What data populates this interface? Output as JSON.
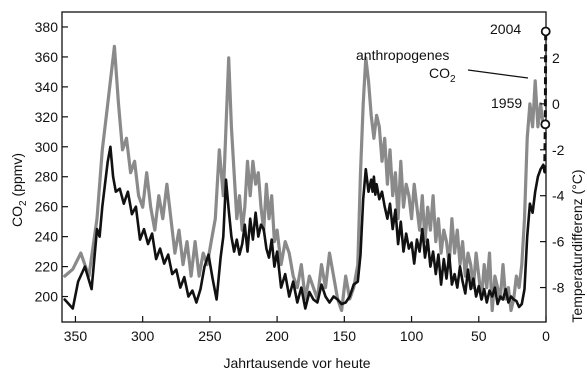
{
  "chart_data": {
    "type": "line",
    "xlabel": "Jahrtausende vor heute",
    "ylabel_left_main": "CO",
    "ylabel_left_sub": "2",
    "ylabel_left_unit": "(ppmv)",
    "ylabel_right": "Temperaturdifferenz (°C)",
    "x_axis_reversed": true,
    "xlim": [
      360,
      0
    ],
    "x_ticks": [
      350,
      300,
      250,
      200,
      150,
      100,
      50,
      0
    ],
    "y_left_lim": [
      183,
      390
    ],
    "y_left_ticks": [
      200,
      220,
      240,
      260,
      280,
      300,
      320,
      340,
      360,
      380
    ],
    "y_right_lim": [
      -9.5,
      4
    ],
    "y_right_ticks": [
      2,
      0,
      -2,
      -4,
      -6,
      -8
    ],
    "grid": false,
    "legend": "none",
    "series": [
      {
        "axis": "left",
        "color": "#111111",
        "x": [
          358,
          352,
          348,
          343,
          338,
          334,
          332,
          330,
          328,
          326,
          324,
          322,
          320,
          317,
          314,
          311,
          308,
          305,
          302,
          299,
          296,
          293,
          290,
          287,
          284,
          281,
          278,
          275,
          272,
          269,
          266,
          263,
          260,
          257,
          254,
          251,
          248,
          245,
          242,
          240,
          238,
          236,
          234,
          232,
          230,
          228,
          226,
          224,
          222,
          220,
          218,
          216,
          214,
          212,
          210,
          208,
          206,
          204,
          202,
          200,
          197,
          194,
          191,
          188,
          185,
          182,
          179,
          176,
          173,
          170,
          167,
          164,
          161,
          158,
          155,
          152,
          149,
          146,
          143,
          140,
          138,
          136,
          134,
          132,
          130,
          129,
          128,
          127,
          126,
          124,
          122,
          120,
          118,
          116,
          114,
          112,
          110,
          108,
          106,
          104,
          102,
          100,
          98,
          96,
          94,
          92,
          90,
          88,
          86,
          84,
          82,
          80,
          78,
          76,
          74,
          72,
          70,
          68,
          66,
          64,
          62,
          60,
          58,
          56,
          54,
          52,
          50,
          48,
          46,
          44,
          42,
          40,
          38,
          36,
          34,
          32,
          30,
          28,
          26,
          24,
          22,
          20,
          18,
          16,
          14,
          12,
          10,
          8,
          6,
          4,
          2,
          1
        ],
        "values": [
          198,
          192,
          210,
          220,
          205,
          245,
          240,
          260,
          275,
          290,
          300,
          280,
          270,
          272,
          262,
          270,
          255,
          260,
          238,
          245,
          235,
          242,
          225,
          232,
          222,
          228,
          215,
          218,
          206,
          213,
          200,
          204,
          196,
          205,
          220,
          228,
          212,
          198,
          226,
          240,
          278,
          258,
          240,
          230,
          238,
          228,
          235,
          248,
          230,
          252,
          238,
          256,
          240,
          248,
          245,
          232,
          226,
          238,
          220,
          230,
          206,
          215,
          200,
          210,
          196,
          206,
          192,
          203,
          198,
          196,
          208,
          200,
          196,
          200,
          198,
          195,
          196,
          200,
          208,
          210,
          228,
          265,
          285,
          270,
          278,
          270,
          280,
          268,
          275,
          265,
          270,
          260,
          252,
          262,
          245,
          258,
          235,
          250,
          230,
          242,
          232,
          236,
          222,
          238,
          230,
          245,
          226,
          238,
          220,
          230,
          215,
          228,
          208,
          225,
          212,
          228,
          208,
          215,
          206,
          220,
          210,
          202,
          218,
          205,
          212,
          200,
          207,
          198,
          205,
          196,
          204,
          200,
          206,
          195,
          200,
          198,
          205,
          196,
          200,
          198,
          197,
          193,
          195,
          205,
          240,
          262,
          256,
          270,
          280,
          285,
          288,
          283
        ],
        "extension": {
          "x": [
            1,
            0.5,
            0.2
          ],
          "values": [
            283,
            315,
            377
          ]
        }
      },
      {
        "axis": "right",
        "color": "#8a8a8a",
        "x": [
          358,
          352,
          346,
          340,
          334,
          330,
          327,
          324,
          321,
          318,
          315,
          312,
          309,
          306,
          303,
          300,
          297,
          294,
          291,
          288,
          285,
          282,
          279,
          276,
          273,
          270,
          267,
          264,
          261,
          258,
          255,
          252,
          249,
          246,
          243,
          240,
          238,
          236,
          234,
          232,
          230,
          228,
          226,
          224,
          222,
          220,
          218,
          216,
          214,
          212,
          210,
          208,
          206,
          204,
          202,
          200,
          197,
          194,
          191,
          188,
          185,
          182,
          179,
          176,
          173,
          170,
          167,
          164,
          161,
          158,
          155,
          152,
          149,
          146,
          143,
          140,
          138,
          136,
          134,
          132,
          130,
          128,
          126,
          124,
          122,
          120,
          118,
          116,
          114,
          112,
          110,
          108,
          106,
          104,
          102,
          100,
          98,
          96,
          94,
          92,
          90,
          88,
          86,
          84,
          82,
          80,
          78,
          76,
          74,
          72,
          70,
          68,
          66,
          64,
          62,
          60,
          58,
          56,
          54,
          52,
          50,
          48,
          46,
          44,
          42,
          40,
          38,
          36,
          34,
          32,
          30,
          28,
          26,
          24,
          22,
          20,
          18,
          16,
          14,
          12,
          10,
          8,
          6,
          4,
          2
        ],
        "values": [
          -7.5,
          -7.2,
          -6.5,
          -7.5,
          -5,
          -2,
          -0.5,
          1,
          2.5,
          0,
          -2,
          -1.5,
          -3,
          -2.5,
          -4,
          -4.5,
          -3,
          -4.5,
          -5.5,
          -4,
          -5,
          -3.5,
          -5,
          -6.5,
          -5.5,
          -7,
          -6,
          -7.5,
          -6,
          -7.5,
          -6.5,
          -7,
          -6,
          -5,
          -2,
          -4,
          -1,
          2,
          -1,
          -3,
          -5,
          -4,
          -5.5,
          -4.5,
          -2.5,
          -4,
          -2.5,
          -3.5,
          -3,
          -4.5,
          -5.5,
          -3.5,
          -5,
          -4,
          -6,
          -5.5,
          -7,
          -6,
          -6.5,
          -7.5,
          -8,
          -7,
          -8.5,
          -7.5,
          -8,
          -8.5,
          -7,
          -8,
          -6.5,
          -7.5,
          -8.5,
          -9,
          -7.5,
          -8.5,
          -8,
          -7,
          -3,
          0,
          2,
          1,
          -0.5,
          -1.5,
          -0.5,
          -1,
          -2.5,
          -1.5,
          -3.5,
          -2,
          -4,
          -3,
          -5,
          -2.5,
          -4.5,
          -3.5,
          -4,
          -5,
          -3.5,
          -4.5,
          -5.5,
          -4,
          -6,
          -4.5,
          -5.5,
          -4,
          -6,
          -5,
          -6.5,
          -5.5,
          -6,
          -7,
          -5,
          -6.5,
          -5.5,
          -7,
          -6,
          -7.5,
          -6.5,
          -7,
          -8,
          -6.5,
          -7.5,
          -8.5,
          -7,
          -8,
          -6.5,
          -9,
          -7.5,
          -8,
          -8.5,
          -7,
          -8.5,
          -8,
          -9,
          -8.5,
          -7.5,
          -8,
          -7,
          -5,
          -1.5,
          0,
          -1,
          1,
          -1,
          0,
          -1
        ]
      }
    ],
    "annotations": {
      "label_2004": "2004",
      "label_1959": "1959",
      "label_anthro_line1": "anthropogenes",
      "label_anthro_line2": "CO",
      "label_anthro_sub": "2"
    }
  }
}
